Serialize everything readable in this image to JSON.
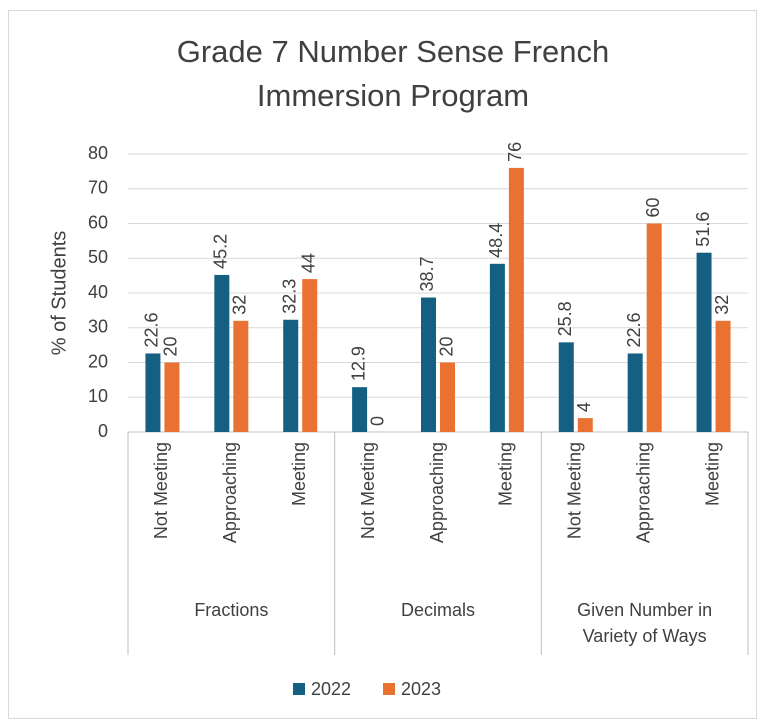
{
  "chart_data": {
    "type": "bar",
    "title": "Grade 7 Number Sense French Immersion Program",
    "y_label": "% of Students",
    "groups": [
      {
        "name": "Fractions",
        "categories": [
          "Not Meeting",
          "Approaching",
          "Meeting"
        ]
      },
      {
        "name": "Decimals",
        "categories": [
          "Not Meeting",
          "Approaching",
          "Meeting"
        ]
      },
      {
        "name": "Given Number in Variety of Ways",
        "categories": [
          "Not Meeting",
          "Approaching",
          "Meeting"
        ]
      }
    ],
    "series": [
      {
        "name": "2022",
        "color": "#156082",
        "values": [
          22.6,
          45.2,
          32.3,
          12.9,
          38.7,
          48.4,
          25.8,
          22.6,
          51.6
        ]
      },
      {
        "name": "2023",
        "color": "#e97132",
        "values": [
          20,
          32,
          44,
          0,
          20,
          76,
          4,
          60,
          32
        ]
      }
    ],
    "ylim": [
      0,
      80
    ],
    "yticks": [
      0,
      10,
      20,
      30,
      40,
      50,
      60,
      70,
      80
    ],
    "grid": true,
    "legend": "bottom"
  }
}
